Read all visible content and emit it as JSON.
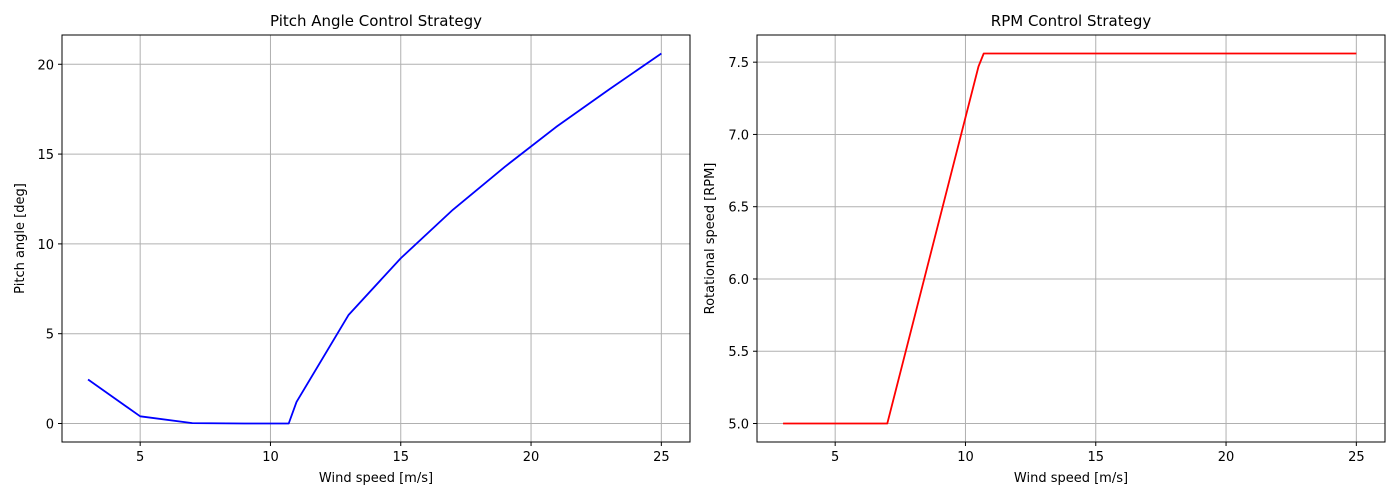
{
  "chart_data": [
    {
      "type": "line",
      "title": "Pitch Angle Control Strategy",
      "xlabel": "Wind speed [m/s]",
      "ylabel": "Pitch angle [deg]",
      "xlim": [
        2,
        26.1
      ],
      "ylim": [
        -1.03,
        21.63
      ],
      "xticks": [
        5,
        10,
        15,
        20,
        25
      ],
      "yticks": [
        0,
        5,
        10,
        15,
        20
      ],
      "ytick_labels": [
        "0",
        "5",
        "10",
        "15",
        "20"
      ],
      "grid": true,
      "series": [
        {
          "color": "#0000ff",
          "x": [
            3,
            5,
            7,
            9,
            10,
            10.7,
            11,
            13,
            15,
            17,
            19,
            21,
            23,
            25
          ],
          "y": [
            2.45,
            0.4,
            0.02,
            0.0,
            0.0,
            0.0,
            1.2,
            6.05,
            9.2,
            11.9,
            14.3,
            16.55,
            18.6,
            20.6
          ]
        }
      ]
    },
    {
      "type": "line",
      "title": "RPM Control Strategy",
      "xlabel": "Wind speed [m/s]",
      "ylabel": "Rotational speed [RPM]",
      "xlim": [
        2,
        26.1
      ],
      "ylim": [
        4.872,
        7.688
      ],
      "xticks": [
        5,
        10,
        15,
        20,
        25
      ],
      "yticks": [
        5.0,
        5.5,
        6.0,
        6.5,
        7.0,
        7.5
      ],
      "ytick_labels": [
        "5.0",
        "5.5",
        "6.0",
        "6.5",
        "7.0",
        "7.5"
      ],
      "grid": true,
      "series": [
        {
          "color": "#ff0000",
          "x": [
            3,
            7,
            10.5,
            10.7,
            25
          ],
          "y": [
            5.0,
            5.0,
            7.47,
            7.56,
            7.56
          ]
        }
      ]
    }
  ]
}
